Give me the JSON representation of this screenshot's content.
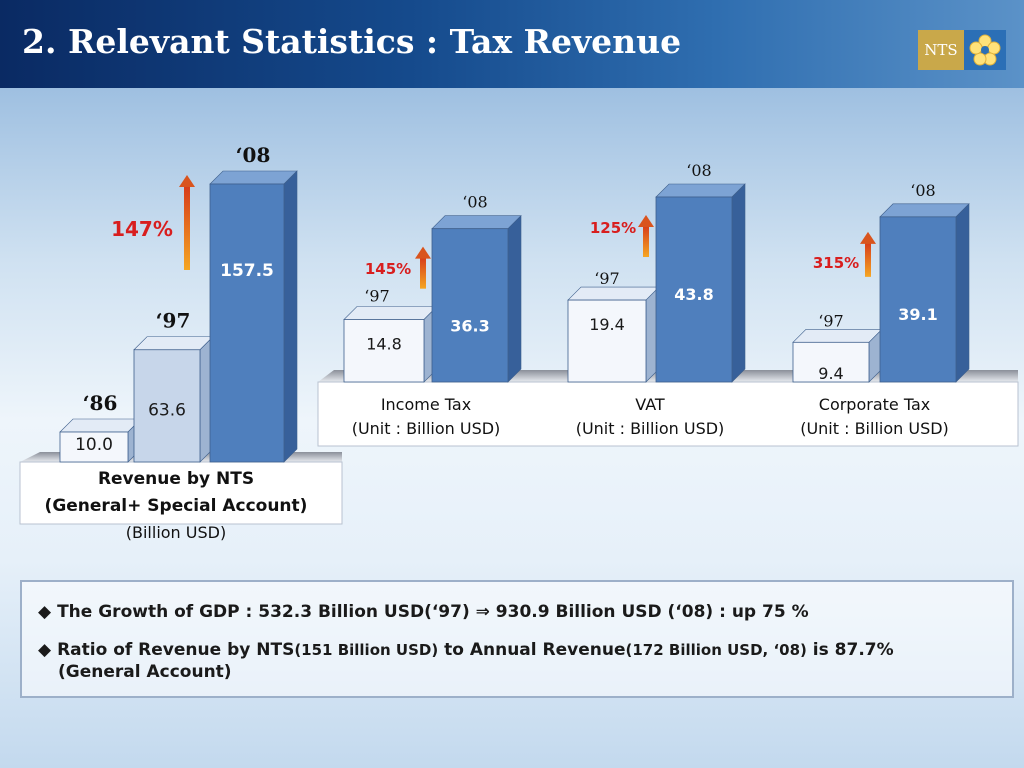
{
  "title": "2. Relevant Statistics : Tax Revenue",
  "logo": {
    "text": "NTS",
    "gold": "#c9a84a",
    "blue": "#2b6fb6"
  },
  "colors": {
    "bar_dark": "#4f7fbd",
    "bar_light": "#c7d6ea",
    "bar_white": "#f4f7fc",
    "growth_red": "#d81e1e",
    "arrow_orange": "#e8822a"
  },
  "chart_data": [
    {
      "type": "bar",
      "title": "Revenue by NTS",
      "subtitle": "(General+ Special Account)",
      "unit": "(Billion USD)",
      "categories": [
        "‘86",
        "‘97",
        "‘08"
      ],
      "values": [
        10.0,
        63.6,
        157.5
      ],
      "value_labels": [
        "10.0",
        "63.6",
        "157.5"
      ],
      "growth": "147%"
    },
    {
      "type": "bar",
      "title": "Income Tax",
      "unit": "(Unit : Billion USD)",
      "categories": [
        "‘97",
        "‘08"
      ],
      "values": [
        14.8,
        36.3
      ],
      "value_labels": [
        "14.8",
        "36.3"
      ],
      "growth": "145%"
    },
    {
      "type": "bar",
      "title": "VAT",
      "unit": "(Unit : Billion USD)",
      "categories": [
        "‘97",
        "‘08"
      ],
      "values": [
        19.4,
        43.8
      ],
      "value_labels": [
        "19.4",
        "43.8"
      ],
      "growth": "125%"
    },
    {
      "type": "bar",
      "title": "Corporate Tax",
      "unit": "(Unit : Billion USD)",
      "categories": [
        "‘97",
        "‘08"
      ],
      "values": [
        9.4,
        39.1
      ],
      "value_labels": [
        "9.4",
        "39.1"
      ],
      "growth": "315%"
    }
  ],
  "notes": {
    "gdp": {
      "bullet": "◆",
      "text": "The Growth of GDP  :  532.3 Billion USD(‘97) ⇒  930.9 Billion USD (‘08) : up 75 %"
    },
    "ratio": {
      "bullet": "◆",
      "part1": "Ratio of Revenue by NTS",
      "part2": "(151 Billion USD)",
      "part3": " to Annual Revenue",
      "part4": "(172 Billion USD, ‘08)",
      "part5": " is 87.7%",
      "line2": "(General Account)"
    }
  }
}
